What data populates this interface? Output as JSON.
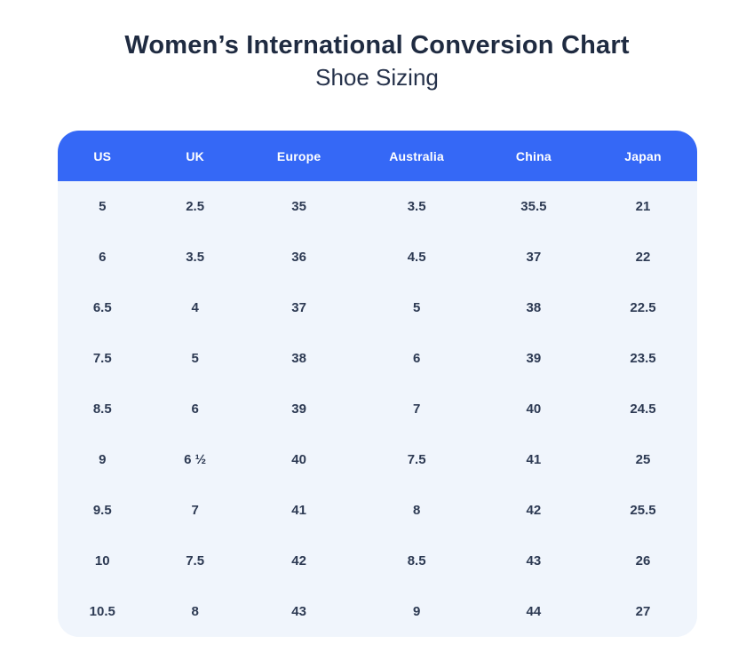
{
  "page": {
    "title": "Women’s International Conversion Chart",
    "subtitle": "Shoe Sizing"
  },
  "colors": {
    "header_bg": "#3568f6",
    "header_text": "#ffffff",
    "body_bg": "#f0f5fc",
    "cell_text": "#2d3a53",
    "title_text": "#1f2b41",
    "page_bg": "#ffffff"
  },
  "chart_data": {
    "type": "table",
    "title": "Women’s International Conversion Chart",
    "subtitle": "Shoe Sizing",
    "columns": [
      "US",
      "UK",
      "Europe",
      "Australia",
      "China",
      "Japan"
    ],
    "rows": [
      [
        "5",
        "2.5",
        "35",
        "3.5",
        "35.5",
        "21"
      ],
      [
        "6",
        "3.5",
        "36",
        "4.5",
        "37",
        "22"
      ],
      [
        "6.5",
        "4",
        "37",
        "5",
        "38",
        "22.5"
      ],
      [
        "7.5",
        "5",
        "38",
        "6",
        "39",
        "23.5"
      ],
      [
        "8.5",
        "6",
        "39",
        "7",
        "40",
        "24.5"
      ],
      [
        "9",
        "6 ½",
        "40",
        "7.5",
        "41",
        "25"
      ],
      [
        "9.5",
        "7",
        "41",
        "8",
        "42",
        "25.5"
      ],
      [
        "10",
        "7.5",
        "42",
        "8.5",
        "43",
        "26"
      ],
      [
        "10.5",
        "8",
        "43",
        "9",
        "44",
        "27"
      ]
    ],
    "legend_position": "none",
    "grid": false
  }
}
